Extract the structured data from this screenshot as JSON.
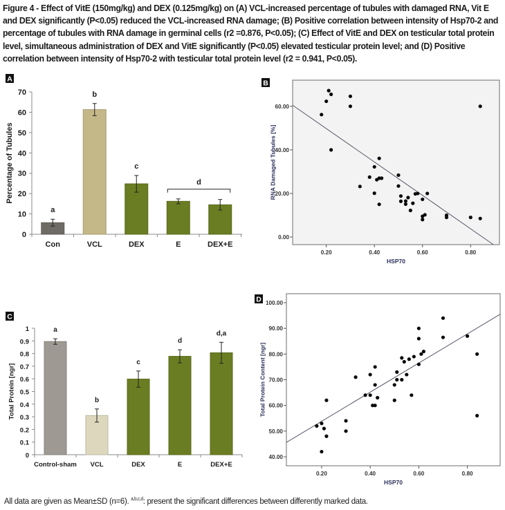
{
  "figure": {
    "caption": "Figure 4 - Effect of VitE (150mg/kg) and DEX (0.125mg/kg) on (A) VCL-increased percentage of tubules with damaged RNA, Vit E and DEX significantly (P<0.05) reduced the VCL-increased RNA damage; (B) Positive correlation between intensity of Hsp70-2 and percentage of tubules with RNA damage in germinal cells (r2 =0.876, P<0.05); (C) Effect of VitE and DEX on testicular total protein level, simultaneous administration of DEX and VitE significantly (P<0.05) elevated testicular protein level; and (D) Positive correlation between intensity of Hsp70-2 with testicular total protein level (r2 = 0.941, P<0.05).",
    "footnote_prefix": "All data are given as Mean±SD (n=6).",
    "footnote_sup": "a,b,c,d",
    "footnote_suffix": ":  present the significant differences between differently marked data."
  },
  "colors": {
    "control": "#6e6a64",
    "vcl_a": "#c4b889",
    "treated": "#6b7d22",
    "control_c": "#9e9a93",
    "vcl_c": "#ddd8bd",
    "scatter_bg": "#f3f3f3",
    "fit_line": "#555566",
    "point": "#0a0a0a"
  },
  "chart_data": [
    {
      "panel": "A",
      "type": "bar",
      "title": "",
      "xlabel": "",
      "ylabel": "Percentage of Tubules",
      "ylim": [
        0,
        70
      ],
      "yticks": [
        0,
        10,
        20,
        30,
        40,
        50,
        60,
        70
      ],
      "categories": [
        "Con",
        "VCL",
        "DEX",
        "E",
        "DEX+E"
      ],
      "values": [
        5.7,
        61.3,
        24.8,
        16.2,
        14.5
      ],
      "errors": [
        1.7,
        3.0,
        4.1,
        1.2,
        2.6
      ],
      "letters": [
        "a",
        "b",
        "c",
        "",
        ""
      ],
      "bar_colors": [
        "control",
        "vcl_a",
        "treated",
        "treated",
        "treated"
      ],
      "group_bracket": {
        "label": "d",
        "from": 3,
        "to": 4
      },
      "grid": false
    },
    {
      "panel": "B",
      "type": "scatter",
      "xlabel": "HSP70",
      "ylabel": "RNA Damaged Tubules [%]",
      "xlim": [
        0.06,
        0.92
      ],
      "ylim": [
        -3.5,
        72
      ],
      "xticks": [
        "0.20",
        "0.40",
        "0.60",
        "0.80"
      ],
      "xtick_values": [
        0.2,
        0.4,
        0.6,
        0.8
      ],
      "yticks": [
        "0.00",
        "20.00",
        "40.00",
        "60.00"
      ],
      "ytick_values": [
        0,
        20,
        40,
        60
      ],
      "fit_line": {
        "x1": 0.06,
        "y1": 60.5,
        "x2": 0.895,
        "y2": -3.5
      },
      "points": [
        [
          0.18,
          56.2
        ],
        [
          0.2,
          62.3
        ],
        [
          0.21,
          67.2
        ],
        [
          0.22,
          65.5
        ],
        [
          0.22,
          40.0
        ],
        [
          0.3,
          64.6
        ],
        [
          0.3,
          60.0
        ],
        [
          0.34,
          23.2
        ],
        [
          0.38,
          27.5
        ],
        [
          0.4,
          32.2
        ],
        [
          0.4,
          20.1
        ],
        [
          0.41,
          26.3
        ],
        [
          0.42,
          27.0
        ],
        [
          0.42,
          36.1
        ],
        [
          0.42,
          15.0
        ],
        [
          0.43,
          27.0
        ],
        [
          0.5,
          28.4
        ],
        [
          0.5,
          23.4
        ],
        [
          0.51,
          18.8
        ],
        [
          0.51,
          16.4
        ],
        [
          0.53,
          16.5
        ],
        [
          0.53,
          15.1
        ],
        [
          0.54,
          18.1
        ],
        [
          0.55,
          12.2
        ],
        [
          0.56,
          15.5
        ],
        [
          0.57,
          19.8
        ],
        [
          0.58,
          20.0
        ],
        [
          0.6,
          17.3
        ],
        [
          0.6,
          9.5
        ],
        [
          0.6,
          8.0
        ],
        [
          0.61,
          10.2
        ],
        [
          0.62,
          20.0
        ],
        [
          0.7,
          10.0
        ],
        [
          0.7,
          9.0
        ],
        [
          0.8,
          9.0
        ],
        [
          0.84,
          8.5
        ],
        [
          0.84,
          60.0
        ]
      ]
    },
    {
      "panel": "C",
      "type": "bar",
      "title": "",
      "xlabel": "",
      "ylabel": "Total Protein [ngr]",
      "ylim": [
        0,
        1
      ],
      "yticks": [
        0,
        0.1,
        0.2,
        0.3,
        0.4,
        0.5,
        0.6,
        0.7,
        0.8,
        0.9,
        1
      ],
      "ytick_labels": [
        "0",
        "0.1",
        "0.2",
        "0.3",
        "0.4",
        "0.5",
        "0.6",
        "0.7",
        "0.8",
        "0.9",
        "1"
      ],
      "categories": [
        "Control-sham",
        "VCL",
        "DEX",
        "E",
        "DEX+E"
      ],
      "values": [
        0.895,
        0.31,
        0.598,
        0.778,
        0.806
      ],
      "errors": [
        0.022,
        0.052,
        0.064,
        0.052,
        0.083
      ],
      "letters": [
        "a",
        "b",
        "c",
        "d",
        "d,a"
      ],
      "bar_colors": [
        "control_c",
        "vcl_c",
        "treated",
        "treated",
        "treated"
      ],
      "grid": false
    },
    {
      "panel": "D",
      "type": "scatter",
      "xlabel": "HSP70",
      "ylabel": "Total Protein Content [ngr]",
      "xlim": [
        0.055,
        0.935
      ],
      "ylim": [
        36.5,
        103.5
      ],
      "xticks": [
        "0.20",
        "0.40",
        "0.60",
        "0.80"
      ],
      "xtick_values": [
        0.2,
        0.4,
        0.6,
        0.8
      ],
      "yticks": [
        "40.00",
        "50.00",
        "60.00",
        "70.00",
        "80.00",
        "90.00",
        "100.00"
      ],
      "ytick_values": [
        40,
        50,
        60,
        70,
        80,
        90,
        100
      ],
      "fit_line": {
        "x1": 0.055,
        "y1": 45.6,
        "x2": 0.935,
        "y2": 95.5
      },
      "points": [
        [
          0.18,
          52.0
        ],
        [
          0.2,
          53.0
        ],
        [
          0.2,
          42.0
        ],
        [
          0.21,
          51.0
        ],
        [
          0.22,
          48.0
        ],
        [
          0.22,
          62.0
        ],
        [
          0.3,
          54.0
        ],
        [
          0.3,
          50.0
        ],
        [
          0.34,
          71.0
        ],
        [
          0.38,
          64.0
        ],
        [
          0.4,
          72.0
        ],
        [
          0.4,
          64.0
        ],
        [
          0.41,
          60.0
        ],
        [
          0.42,
          75.0
        ],
        [
          0.42,
          68.0
        ],
        [
          0.42,
          60.0
        ],
        [
          0.43,
          63.0
        ],
        [
          0.5,
          68.0
        ],
        [
          0.5,
          62.0
        ],
        [
          0.51,
          73.0
        ],
        [
          0.51,
          70.0
        ],
        [
          0.53,
          70.0
        ],
        [
          0.53,
          78.5
        ],
        [
          0.54,
          77.0
        ],
        [
          0.55,
          72.0
        ],
        [
          0.56,
          78.0
        ],
        [
          0.57,
          64.0
        ],
        [
          0.58,
          79.0
        ],
        [
          0.6,
          90.0
        ],
        [
          0.6,
          86.0
        ],
        [
          0.6,
          76.0
        ],
        [
          0.61,
          80.0
        ],
        [
          0.62,
          81.0
        ],
        [
          0.7,
          94.0
        ],
        [
          0.7,
          86.5
        ],
        [
          0.8,
          87.0
        ],
        [
          0.84,
          80.0
        ],
        [
          0.84,
          56.0
        ]
      ]
    }
  ]
}
